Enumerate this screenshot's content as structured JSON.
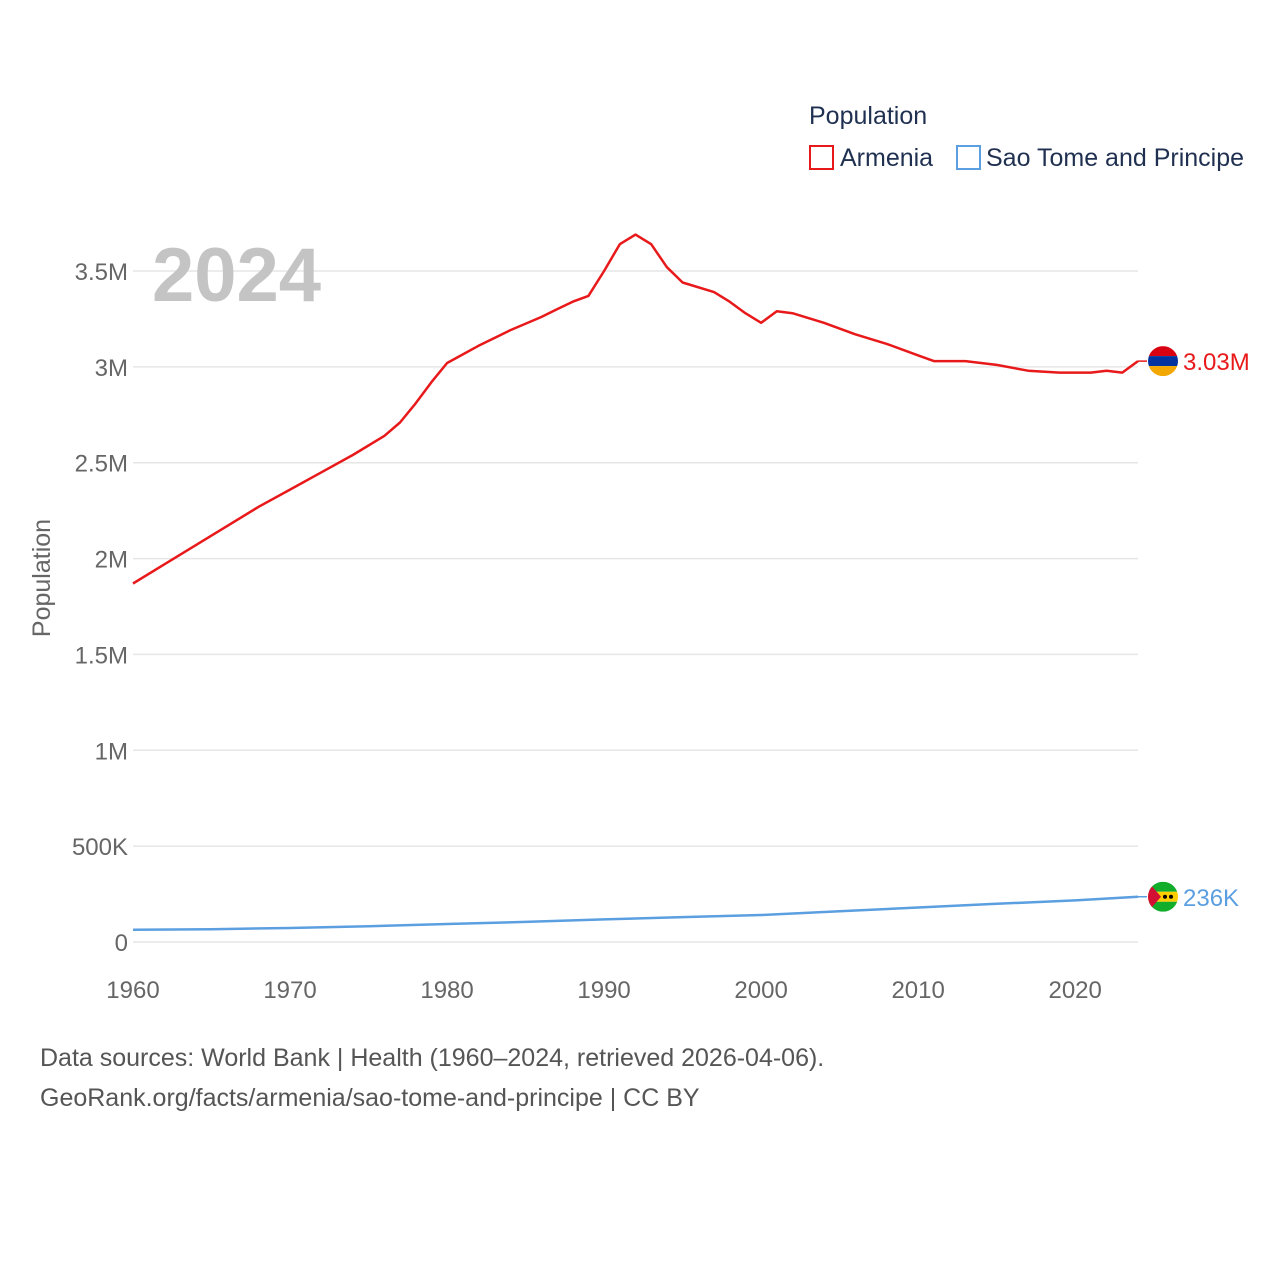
{
  "chart_data": {
    "type": "line",
    "year_label": "2024",
    "ylabel": "Population",
    "legend": {
      "title": "Population",
      "placement": "top-right"
    },
    "xlim": [
      1960,
      2024
    ],
    "ylim": [
      0,
      3750000
    ],
    "x_ticks": [
      {
        "value": 1960,
        "label": "1960"
      },
      {
        "value": 1970,
        "label": "1970"
      },
      {
        "value": 1980,
        "label": "1980"
      },
      {
        "value": 1990,
        "label": "1990"
      },
      {
        "value": 2000,
        "label": "2000"
      },
      {
        "value": 2010,
        "label": "2010"
      },
      {
        "value": 2020,
        "label": "2020"
      }
    ],
    "y_ticks": [
      {
        "value": 0,
        "label": "0"
      },
      {
        "value": 500000,
        "label": "500K"
      },
      {
        "value": 1000000,
        "label": "1M"
      },
      {
        "value": 1500000,
        "label": "1.5M"
      },
      {
        "value": 2000000,
        "label": "2M"
      },
      {
        "value": 2500000,
        "label": "2.5M"
      },
      {
        "value": 3000000,
        "label": "3M"
      },
      {
        "value": 3500000,
        "label": "3.5M"
      }
    ],
    "series": [
      {
        "name": "Armenia",
        "color": "#e8191a",
        "end_label": "3.03M",
        "flag": "armenia-flag",
        "x": [
          1960,
          1962,
          1965,
          1968,
          1970,
          1972,
          1974,
          1975,
          1976,
          1977,
          1978,
          1979,
          1980,
          1982,
          1983,
          1984,
          1986,
          1987,
          1988,
          1989,
          1990,
          1991,
          1992,
          1993,
          1994,
          1995,
          1997,
          1998,
          1999,
          2000,
          2001,
          2002,
          2004,
          2006,
          2008,
          2010,
          2011,
          2013,
          2015,
          2017,
          2019,
          2021,
          2022,
          2023,
          2024
        ],
        "values": [
          1870000,
          1970000,
          2120000,
          2270000,
          2360000,
          2450000,
          2540000,
          2590000,
          2640000,
          2710000,
          2810000,
          2920000,
          3020000,
          3110000,
          3150000,
          3190000,
          3260000,
          3300000,
          3340000,
          3370000,
          3500000,
          3640000,
          3690000,
          3640000,
          3520000,
          3440000,
          3390000,
          3340000,
          3280000,
          3230000,
          3290000,
          3280000,
          3230000,
          3170000,
          3120000,
          3060000,
          3030000,
          3030000,
          3010000,
          2980000,
          2970000,
          2970000,
          2980000,
          2970000,
          3030000
        ]
      },
      {
        "name": "Sao Tome and Principe",
        "color": "#5b9fe0",
        "end_label": "236K",
        "flag": "sao-tome-and-principe-flag",
        "x": [
          1960,
          1965,
          1970,
          1975,
          1980,
          1985,
          1990,
          1995,
          2000,
          2005,
          2010,
          2015,
          2020,
          2024
        ],
        "values": [
          64000,
          67000,
          73000,
          82000,
          94000,
          105000,
          118000,
          130000,
          141000,
          160000,
          180000,
          199000,
          217000,
          236000
        ]
      }
    ]
  },
  "footer": {
    "line1": "Data sources: World Bank | Health (1960–2024, retrieved 2026-04-06).",
    "line2": "GeoRank.org/facts/armenia/sao-tome-and-principe | CC BY"
  }
}
